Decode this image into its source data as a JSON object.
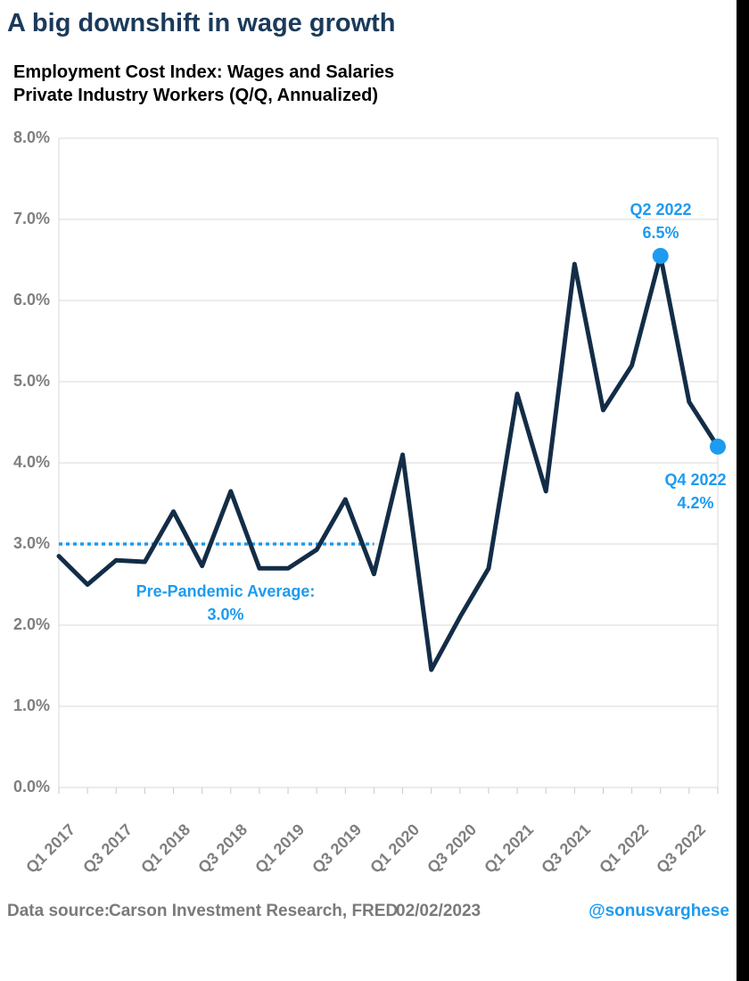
{
  "title": "A big downshift in wage growth",
  "subtitle": {
    "line1": "Employment Cost Index: Wages and Salaries",
    "line2": "Private Industry Workers (Q/Q, Annualized)"
  },
  "footer": {
    "source_label": "Data source:",
    "source_value": "Carson Investment Research, FRED",
    "date": "02/02/2023",
    "handle": "@sonusvarghese"
  },
  "colors": {
    "title_navy": "#1b3a5a",
    "line_navy": "#132d47",
    "accent_blue": "#1d9bf0",
    "grid_gray": "#d9d9d9",
    "tick_gray": "#c9c9c9",
    "axis_text_gray": "#7f7f7f",
    "side_bar_black": "#000000",
    "background": "#ffffff"
  },
  "chart_data": {
    "type": "line",
    "title": "Employment Cost Index: Wages and Salaries — Private Industry Workers (Q/Q, Annualized)",
    "categories": [
      "Q1 2017",
      "Q2 2017",
      "Q3 2017",
      "Q4 2017",
      "Q1 2018",
      "Q2 2018",
      "Q3 2018",
      "Q4 2018",
      "Q1 2019",
      "Q2 2019",
      "Q3 2019",
      "Q4 2019",
      "Q1 2020",
      "Q2 2020",
      "Q3 2020",
      "Q4 2020",
      "Q1 2021",
      "Q2 2021",
      "Q3 2021",
      "Q4 2021",
      "Q1 2022",
      "Q2 2022",
      "Q3 2022",
      "Q4 2022"
    ],
    "values": [
      2.85,
      2.5,
      2.8,
      2.78,
      3.4,
      2.73,
      3.65,
      2.7,
      2.7,
      2.93,
      3.55,
      2.63,
      4.1,
      1.45,
      2.1,
      2.7,
      4.85,
      3.65,
      6.45,
      4.65,
      5.2,
      6.55,
      4.75,
      4.2
    ],
    "unit": "%",
    "ylim": [
      0,
      8
    ],
    "grid": "horizontal",
    "y_ticks": [
      {
        "label": "8.0%",
        "value": 8
      },
      {
        "label": "7.0%",
        "value": 7
      },
      {
        "label": "6.0%",
        "value": 6
      },
      {
        "label": "5.0%",
        "value": 5
      },
      {
        "label": "4.0%",
        "value": 4
      },
      {
        "label": "3.0%",
        "value": 3
      },
      {
        "label": "2.0%",
        "value": 2
      },
      {
        "label": "1.0%",
        "value": 1
      },
      {
        "label": "0.0%",
        "value": 0
      }
    ],
    "x_ticks": [
      {
        "label": "Q1 2017",
        "index": 0
      },
      {
        "label": "Q3 2017",
        "index": 2
      },
      {
        "label": "Q1 2018",
        "index": 4
      },
      {
        "label": "Q3 2018",
        "index": 6
      },
      {
        "label": "Q1 2019",
        "index": 8
      },
      {
        "label": "Q3 2019",
        "index": 10
      },
      {
        "label": "Q1 2020",
        "index": 12
      },
      {
        "label": "Q3 2020",
        "index": 14
      },
      {
        "label": "Q1 2021",
        "index": 16
      },
      {
        "label": "Q3 2021",
        "index": 18
      },
      {
        "label": "Q1 2022",
        "index": 20
      },
      {
        "label": "Q3 2022",
        "index": 22
      }
    ],
    "reference_line": {
      "value": 3.0,
      "style": "dotted",
      "span_categories": [
        "Q1 2017",
        "Q4 2019"
      ],
      "label_line1": "Pre-Pandemic Average:",
      "label_line2": "3.0%"
    },
    "markers": [
      "Q2 2022",
      "Q4 2022"
    ],
    "annotations": [
      {
        "point": "Q2 2022",
        "value": 6.5,
        "label_line1": "Q2 2022",
        "label_line2": "6.5%"
      },
      {
        "point": "Q4 2022",
        "value": 4.2,
        "label_line1": "Q4 2022",
        "label_line2": "4.2%"
      }
    ]
  }
}
